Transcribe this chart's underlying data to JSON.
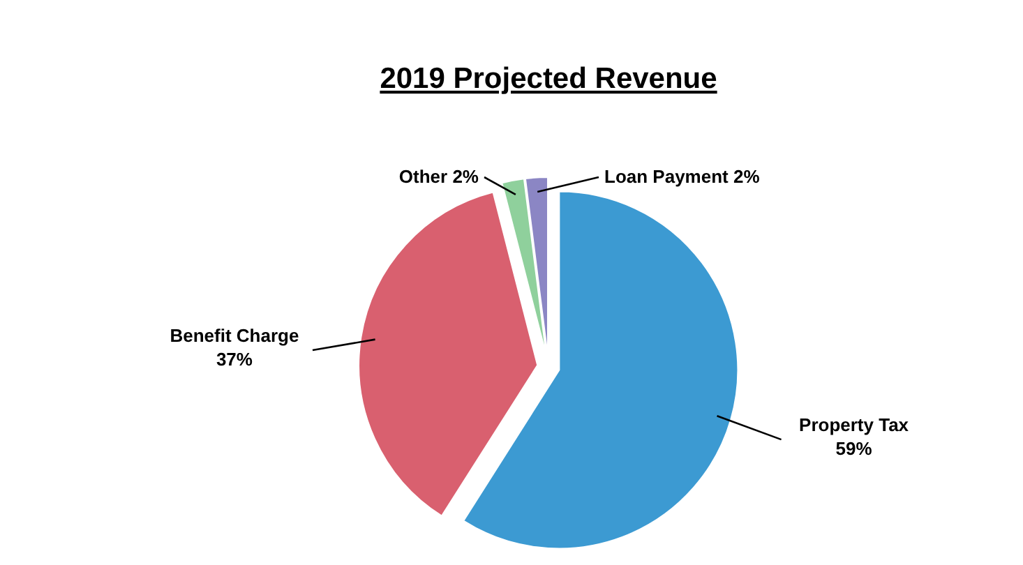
{
  "chart_data": {
    "type": "pie",
    "title": "2019 Projected Revenue",
    "categories": [
      "Property Tax",
      "Benefit Charge",
      "Other",
      "Loan Payment"
    ],
    "values": [
      59,
      37,
      2,
      2
    ],
    "value_labels": [
      "59%",
      "37%",
      "2%",
      "2%"
    ],
    "colors": [
      "#3c9ad2",
      "#d9606f",
      "#8fd09c",
      "#8b86c4"
    ]
  }
}
